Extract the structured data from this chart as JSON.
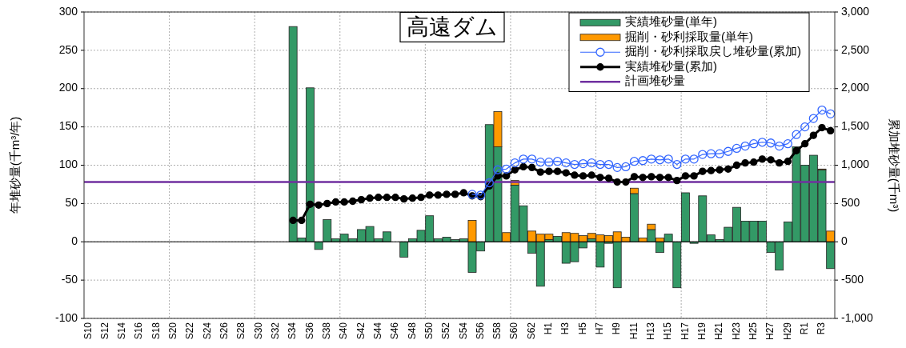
{
  "chart_data": {
    "type": "bar",
    "title": "高遠ダム",
    "ylabel": "年堆砂量(千m³/年)",
    "y2label": "累加堆砂量(千m³)",
    "categories": [
      "S10",
      null,
      "S12",
      null,
      "S14",
      null,
      "S16",
      null,
      "S18",
      null,
      "S20",
      null,
      "S22",
      null,
      "S24",
      null,
      "S26",
      null,
      "S28",
      null,
      "S30",
      null,
      "S32",
      null,
      "S34",
      null,
      "S36",
      null,
      "S38",
      null,
      "S40",
      null,
      "S42",
      null,
      "S44",
      null,
      "S46",
      null,
      "S48",
      null,
      "S50",
      null,
      "S52",
      null,
      "S54",
      null,
      "S56",
      null,
      "S58",
      null,
      "S60",
      null,
      "S62",
      null,
      "H1",
      null,
      "H3",
      null,
      "H5",
      null,
      "H7",
      null,
      "H9",
      null,
      "H11",
      null,
      "H13",
      null,
      "H15",
      null,
      "H17",
      null,
      "H19",
      null,
      "H21",
      null,
      "H23",
      null,
      "H25",
      null,
      "H27",
      null,
      "H29",
      null,
      "R1",
      null,
      "R3",
      null
    ],
    "stacked": true,
    "series": [
      {
        "name": "実績堆砂量(単年)",
        "color": "#339966",
        "values": [
          null,
          null,
          null,
          null,
          null,
          null,
          null,
          null,
          null,
          null,
          null,
          null,
          null,
          null,
          null,
          null,
          null,
          null,
          null,
          null,
          null,
          null,
          null,
          null,
          281,
          5,
          201,
          -10,
          29,
          4,
          10,
          4,
          16,
          20,
          4,
          13,
          0,
          -20,
          4,
          15,
          34,
          4,
          6,
          3,
          4,
          -40,
          -12,
          153,
          124,
          0,
          74,
          47,
          -15,
          -58,
          3,
          7,
          -28,
          -26,
          -8,
          4,
          -33,
          -2,
          -60,
          0,
          63,
          0,
          16,
          -14,
          10,
          -60,
          64,
          -2,
          60,
          9,
          3,
          19,
          45,
          27,
          27,
          27,
          -14,
          -37,
          26,
          124,
          100,
          113,
          94,
          -35
        ]
      },
      {
        "name": "掘削・砂利採取量(単年)",
        "color": "#ff9900",
        "values": [
          null,
          null,
          null,
          null,
          null,
          null,
          null,
          null,
          null,
          null,
          null,
          null,
          null,
          null,
          null,
          null,
          null,
          null,
          null,
          null,
          null,
          null,
          null,
          null,
          null,
          null,
          null,
          null,
          null,
          null,
          null,
          null,
          null,
          null,
          null,
          null,
          null,
          null,
          null,
          null,
          null,
          null,
          null,
          null,
          null,
          28,
          null,
          null,
          46,
          12,
          6,
          null,
          14,
          10,
          7,
          null,
          12,
          11,
          8,
          7,
          9,
          8,
          13,
          6,
          7,
          5,
          7,
          5,
          null,
          null,
          null,
          null,
          null,
          null,
          null,
          null,
          null,
          null,
          null,
          null,
          null,
          null,
          null,
          null,
          null,
          null,
          1,
          14
        ]
      },
      {
        "name": "掘削・砂利採取戻し堆砂量(累加)",
        "type": "line",
        "axis": "y2",
        "marker": "circle",
        "color": "#3366ff",
        "values": [
          null,
          null,
          null,
          null,
          null,
          null,
          null,
          null,
          null,
          null,
          null,
          null,
          null,
          null,
          null,
          null,
          null,
          null,
          null,
          null,
          null,
          null,
          null,
          null,
          null,
          null,
          null,
          null,
          null,
          null,
          null,
          null,
          null,
          null,
          null,
          null,
          null,
          null,
          null,
          null,
          null,
          null,
          null,
          null,
          null,
          620,
          610,
          770,
          940,
          950,
          1030,
          1080,
          1080,
          1040,
          1040,
          1050,
          1030,
          1010,
          1020,
          1030,
          1010,
          1010,
          970,
          980,
          1050,
          1060,
          1080,
          1070,
          1080,
          1010,
          1080,
          1080,
          1140,
          1150,
          1150,
          1180,
          1220,
          1250,
          1280,
          1300,
          1290,
          1250,
          1280,
          1400,
          1500,
          1610,
          1720,
          1670
        ]
      },
      {
        "name": "実績堆砂量(累加)",
        "type": "line",
        "axis": "y2",
        "marker": "circle",
        "color": "#000000",
        "values": [
          null,
          null,
          null,
          null,
          null,
          null,
          null,
          null,
          null,
          null,
          null,
          null,
          null,
          null,
          null,
          null,
          null,
          null,
          null,
          null,
          null,
          null,
          null,
          null,
          280,
          280,
          490,
          480,
          500,
          520,
          520,
          530,
          550,
          570,
          580,
          580,
          580,
          560,
          570,
          580,
          610,
          610,
          620,
          620,
          640,
          600,
          590,
          730,
          860,
          860,
          940,
          980,
          970,
          910,
          920,
          920,
          900,
          870,
          860,
          870,
          840,
          830,
          780,
          780,
          850,
          840,
          850,
          840,
          840,
          800,
          860,
          860,
          920,
          930,
          940,
          950,
          1000,
          1030,
          1040,
          1080,
          1070,
          1030,
          1050,
          1190,
          1280,
          1390,
          1490,
          1450
        ]
      }
    ],
    "ref_lines": [
      {
        "axis": "y2",
        "value": 780,
        "label": "計画堆砂量",
        "color": "#7030a0"
      }
    ],
    "ylim": [
      -100,
      300
    ],
    "yticks": [
      -100,
      -50,
      0,
      50,
      100,
      150,
      200,
      250,
      300
    ],
    "y2lim": [
      -1000,
      3000
    ],
    "y2ticks": [
      {
        "value": -1000,
        "label": "-1,000"
      },
      -500,
      0,
      500,
      {
        "value": 1000,
        "label": "1,000"
      },
      {
        "value": 1500,
        "label": "1,500"
      },
      {
        "value": 2000,
        "label": "2,000"
      },
      {
        "value": 2500,
        "label": "2,500"
      },
      {
        "value": 3000,
        "label": "3,000"
      }
    ],
    "grid": true,
    "legend": "top right"
  }
}
